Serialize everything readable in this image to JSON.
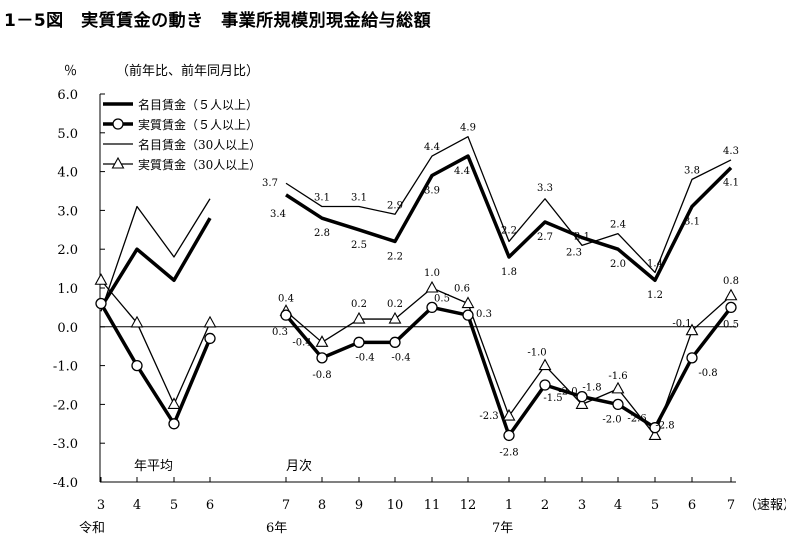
{
  "title": "1－5図　実質賃金の動き　事業所規模別現金給与総額",
  "chart_data": {
    "type": "line",
    "y_unit": "％",
    "y_note": "（前年比、前年同月比）",
    "ylim": [
      -4.0,
      6.0
    ],
    "y_ticks": [
      "6.0",
      "5.0",
      "4.0",
      "3.0",
      "2.0",
      "1.0",
      "0.0",
      "-1.0",
      "-2.0",
      "-3.0",
      "-4.0"
    ],
    "x_ticks": [
      "3",
      "4",
      "5",
      "6",
      "7",
      "8",
      "9",
      "10",
      "11",
      "12",
      "1",
      "2",
      "3",
      "4",
      "5",
      "6",
      "7"
    ],
    "x_suffix": "（速報）",
    "era_labels": [
      "令和",
      "6年",
      "7年"
    ],
    "section_labels": [
      "年平均",
      "月次"
    ],
    "grid": false,
    "legend_position": "top-left",
    "series": [
      {
        "name": "名目賃金（５人以上）",
        "style": "thick",
        "marker": "none",
        "annual": [
          0.5,
          2.0,
          1.2,
          2.8
        ],
        "monthly": [
          3.4,
          2.8,
          2.5,
          2.2,
          3.9,
          4.4,
          1.8,
          2.7,
          2.3,
          2.0,
          1.2,
          3.1,
          4.1
        ],
        "labels": [
          "3.4",
          "2.8",
          "2.5",
          "2.2",
          "3.9",
          "4.4",
          "1.8",
          "2.7",
          "2.3",
          "2.0",
          "1.2",
          "3.1",
          "4.1"
        ]
      },
      {
        "name": "実質賃金（５人以上）",
        "style": "thick",
        "marker": "circle",
        "annual": [
          0.6,
          -1.0,
          -2.5,
          -0.3
        ],
        "monthly": [
          0.3,
          -0.8,
          -0.4,
          -0.4,
          0.5,
          0.3,
          -2.8,
          -1.5,
          -1.8,
          -2.0,
          -2.6,
          -0.8,
          0.5
        ],
        "labels": [
          "0.3",
          "-0.8",
          "-0.4",
          "-0.4",
          "0.5",
          "0.3",
          "-2.8",
          "-1.5",
          "-1.8",
          "-2.0",
          "-2.6",
          "-0.8",
          "0.5"
        ]
      },
      {
        "name": "名目賃金（30人以上）",
        "style": "thin",
        "marker": "none",
        "annual": [
          0.4,
          3.1,
          1.8,
          3.3
        ],
        "monthly": [
          3.7,
          3.1,
          3.1,
          2.9,
          4.4,
          4.9,
          2.2,
          3.3,
          2.1,
          2.4,
          1.4,
          3.8,
          4.3
        ],
        "labels": [
          "3.7",
          "3.1",
          "3.1",
          "2.9",
          "4.4",
          "4.9",
          "2.2",
          "3.3",
          "2.1",
          "2.4",
          "1.4",
          "3.8",
          "4.3"
        ]
      },
      {
        "name": "実質賃金（30人以上）",
        "style": "thin",
        "marker": "triangle",
        "annual": [
          1.2,
          0.1,
          -2.0,
          0.1
        ],
        "monthly": [
          0.4,
          -0.4,
          0.2,
          0.2,
          1.0,
          0.6,
          -2.3,
          -1.0,
          -2.0,
          -1.6,
          -2.8,
          -0.1,
          0.8
        ],
        "labels": [
          "0.4",
          "-0.4",
          "0.2",
          "0.2",
          "1.0",
          "0.6",
          "-2.3",
          "-1.0",
          "-2.0",
          "-1.6",
          "-2.8",
          "-0.1",
          "0.8"
        ]
      }
    ]
  }
}
